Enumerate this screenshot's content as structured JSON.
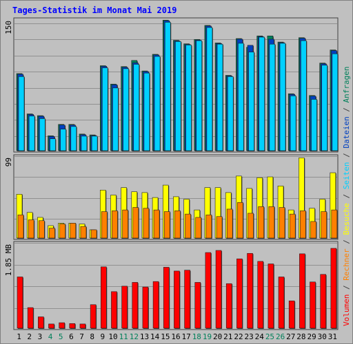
{
  "title": "Tages-Statistik im Monat Mai 2019",
  "chart_data": [
    {
      "type": "bar",
      "panel": "top",
      "categories": [
        "1",
        "2",
        "3",
        "4",
        "5",
        "6",
        "7",
        "8",
        "9",
        "10",
        "11",
        "12",
        "13",
        "14",
        "15",
        "16",
        "17",
        "18",
        "19",
        "20",
        "21",
        "22",
        "23",
        "24",
        "25",
        "26",
        "27",
        "28",
        "29",
        "30",
        "31"
      ],
      "weekend_days": [
        "4",
        "5",
        "11",
        "12",
        "18",
        "19",
        "25",
        "26"
      ],
      "ylim": [
        0,
        150
      ],
      "y_tick_label": "150",
      "series": [
        {
          "name": "Anfragen",
          "color": "#00805a",
          "values": [
            88,
            42,
            40,
            17,
            30,
            30,
            19,
            18,
            97,
            76,
            96,
            103,
            91,
            110,
            149,
            126,
            122,
            127,
            143,
            123,
            86,
            128,
            118,
            131,
            131,
            124,
            65,
            129,
            63,
            100,
            115
          ]
        },
        {
          "name": "Dateien",
          "color": "#0040c0",
          "values": [
            88,
            42,
            40,
            17,
            30,
            30,
            19,
            18,
            97,
            76,
            96,
            101,
            91,
            110,
            149,
            126,
            122,
            127,
            143,
            123,
            86,
            128,
            121,
            131,
            128,
            124,
            65,
            129,
            63,
            100,
            115
          ]
        },
        {
          "name": "Seiten",
          "color": "#00d0ff",
          "values": [
            86,
            41,
            38,
            15,
            26,
            29,
            18,
            18,
            96,
            73,
            95,
            100,
            90,
            109,
            148,
            126,
            122,
            127,
            142,
            123,
            86,
            124,
            114,
            131,
            123,
            124,
            64,
            127,
            60,
            99,
            112
          ]
        }
      ]
    },
    {
      "type": "bar",
      "panel": "middle",
      "categories": [
        "1",
        "2",
        "3",
        "4",
        "5",
        "6",
        "7",
        "8",
        "9",
        "10",
        "11",
        "12",
        "13",
        "14",
        "15",
        "16",
        "17",
        "18",
        "19",
        "20",
        "21",
        "22",
        "23",
        "24",
        "25",
        "26",
        "27",
        "28",
        "29",
        "30",
        "31"
      ],
      "ylim": [
        0,
        99
      ],
      "y_tick_label": "99",
      "series": [
        {
          "name": "Besuche",
          "color": "#ffff00",
          "values": [
            53,
            31,
            25,
            15,
            18,
            18,
            17,
            10,
            58,
            52,
            61,
            56,
            55,
            49,
            64,
            50,
            47,
            34,
            61,
            61,
            55,
            75,
            60,
            73,
            74,
            63,
            34,
            97,
            36,
            47,
            79
          ]
        },
        {
          "name": "Rechner",
          "color": "#ff8000",
          "values": [
            28,
            22,
            21,
            12,
            17,
            18,
            14,
            10,
            32,
            33,
            34,
            37,
            36,
            34,
            32,
            33,
            29,
            25,
            28,
            26,
            35,
            43,
            30,
            38,
            38,
            37,
            29,
            33,
            20,
            32,
            34
          ]
        }
      ]
    },
    {
      "type": "bar",
      "panel": "bottom",
      "categories": [
        "1",
        "2",
        "3",
        "4",
        "5",
        "6",
        "7",
        "8",
        "9",
        "10",
        "11",
        "12",
        "13",
        "14",
        "15",
        "16",
        "17",
        "18",
        "19",
        "20",
        "21",
        "22",
        "23",
        "24",
        "25",
        "26",
        "27",
        "28",
        "29",
        "30",
        "31"
      ],
      "ylim": [
        0,
        2.03
      ],
      "y_tick_label": "1.85 MB",
      "series": [
        {
          "name": "Volumen",
          "color": "#ff0000",
          "values": [
            1.22,
            0.49,
            0.27,
            0.1,
            0.13,
            0.11,
            0.1,
            0.56,
            1.46,
            0.87,
            1.0,
            1.09,
            0.98,
            1.11,
            1.45,
            1.36,
            1.38,
            1.09,
            1.8,
            1.85,
            1.06,
            1.65,
            1.78,
            1.59,
            1.53,
            1.22,
            0.65,
            1.77,
            1.1,
            1.28,
            1.9
          ]
        }
      ]
    }
  ],
  "legend": {
    "volumen": "Volumen",
    "rechner": "Rechner",
    "besuche": "Besuche",
    "seiten": "Seiten",
    "dateien": "Dateien",
    "anfragen": "Anfragen",
    "separator": "/",
    "colors": {
      "volumen": "#ff0000",
      "rechner": "#ff8000",
      "besuche": "#ffff00",
      "seiten": "#00d0ff",
      "dateien": "#0040c0",
      "anfragen": "#00805a",
      "separator": "#404040"
    }
  },
  "colors": {
    "background": "#c0c0c0",
    "plot_border": "#404040",
    "gridline": "#909090",
    "day_label": "#000000",
    "weekend_label": "#00805a",
    "title": "#0000ff"
  }
}
